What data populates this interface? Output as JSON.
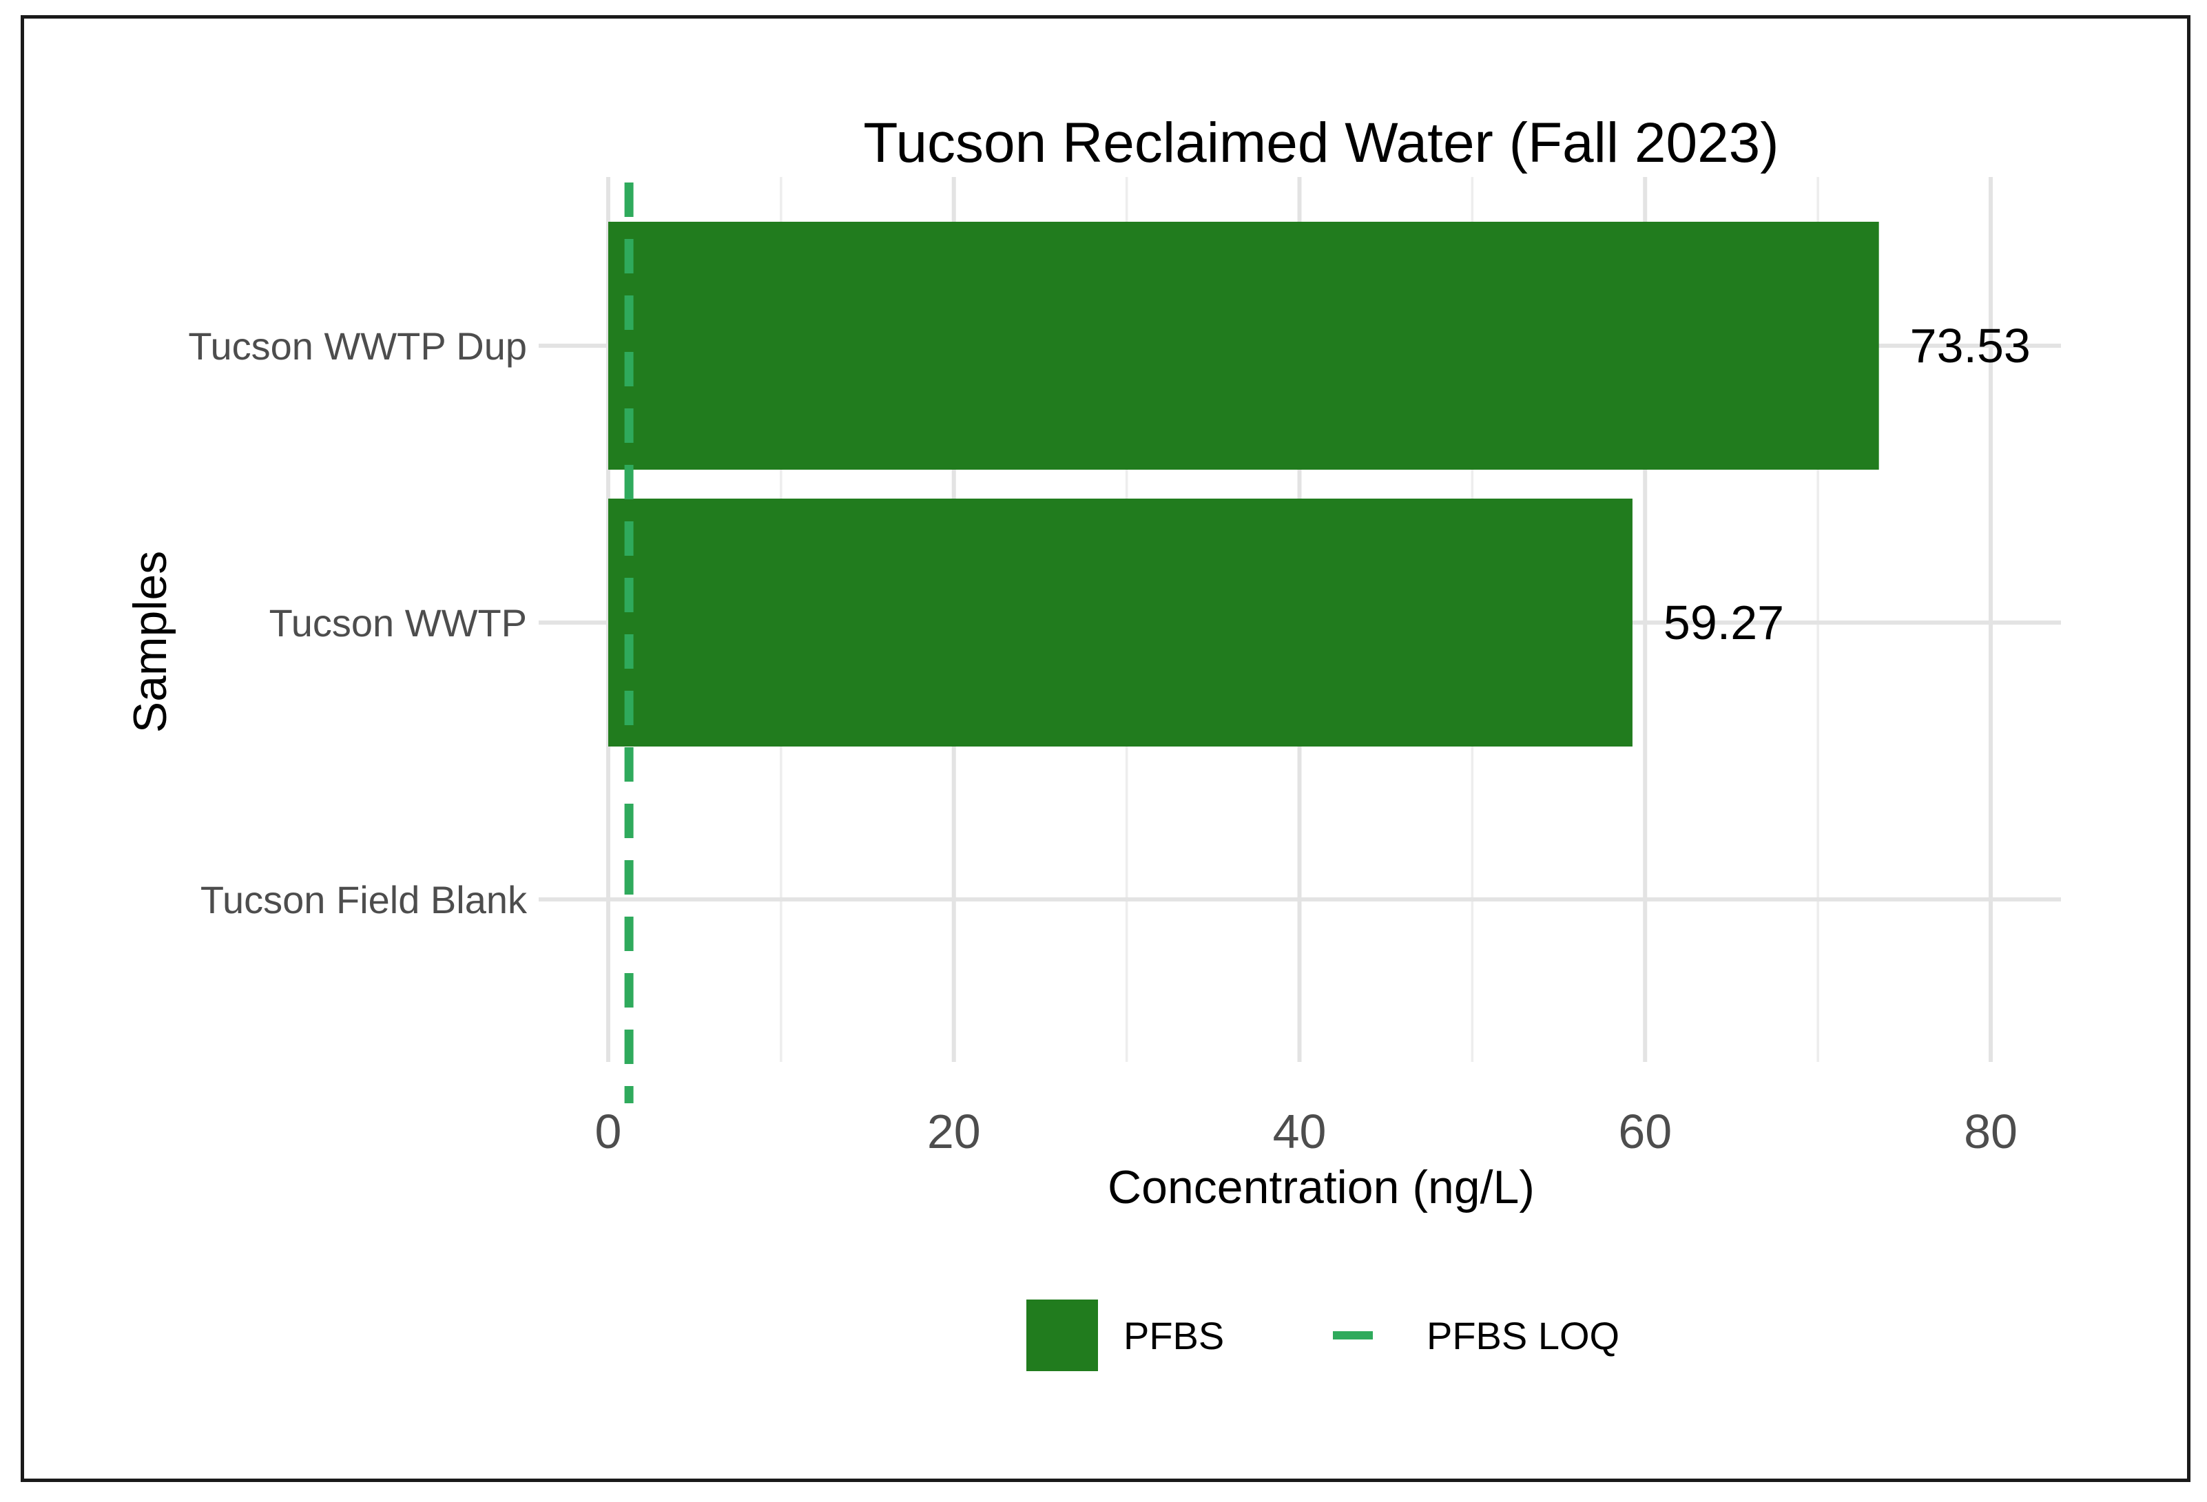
{
  "chart_data": {
    "type": "bar",
    "orientation": "horizontal",
    "title": "Tucson Reclaimed Water (Fall 2023)",
    "xlabel": "Concentration (ng/L)",
    "ylabel": "Samples",
    "categories": [
      "Tucson WWTP Dup",
      "Tucson WWTP",
      "Tucson Field Blank"
    ],
    "series": [
      {
        "name": "PFBS",
        "values": [
          73.53,
          59.27,
          0
        ],
        "color": "#217c1e"
      }
    ],
    "data_labels": [
      "73.53",
      "59.27",
      ""
    ],
    "reference_lines": [
      {
        "name": "PFBS LOQ",
        "value": 1.2,
        "style": "dashed",
        "color": "#2faa5c"
      }
    ],
    "xlim": [
      0,
      84
    ],
    "xticks": [
      0,
      20,
      40,
      60,
      80
    ],
    "xtick_labels": [
      "0",
      "20",
      "40",
      "60",
      "80"
    ],
    "grid": true,
    "legend": {
      "position": "bottom",
      "items": [
        {
          "label": "PFBS",
          "kind": "bar"
        },
        {
          "label": "PFBS LOQ",
          "kind": "dashed-line"
        }
      ]
    }
  }
}
